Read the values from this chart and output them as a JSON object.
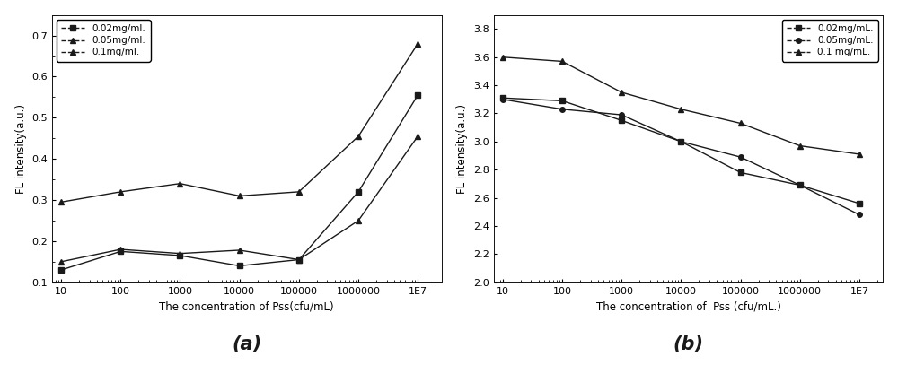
{
  "x_values": [
    10,
    100,
    1000,
    10000,
    100000,
    1000000,
    10000000
  ],
  "x_labels": [
    "10",
    "100",
    "1000",
    "10000",
    "100000",
    "1000000",
    "1E7"
  ],
  "panel_a": {
    "xlabel": "The concentration of Pss(cfu/mL)",
    "ylabel": "FL intensity(a.u.)",
    "ylim": [
      0.1,
      0.75
    ],
    "yticks": [
      0.1,
      0.2,
      0.3,
      0.4,
      0.5,
      0.6,
      0.7
    ],
    "series": [
      {
        "label": "0.02mg/ml.",
        "marker": "s",
        "y": [
          0.13,
          0.175,
          0.165,
          0.14,
          0.155,
          0.32,
          0.555
        ]
      },
      {
        "label": "0.05mg/ml.",
        "marker": "^",
        "y": [
          0.15,
          0.18,
          0.17,
          0.178,
          0.155,
          0.25,
          0.455
        ]
      },
      {
        "label": "0.1mg/ml.",
        "marker": "^",
        "y": [
          0.295,
          0.32,
          0.34,
          0.31,
          0.32,
          0.455,
          0.68
        ]
      }
    ]
  },
  "panel_b": {
    "xlabel": "The concentration of  Pss (cfu/mL.)",
    "ylabel": "FL intensity(a.u.)",
    "ylim": [
      2.0,
      3.9
    ],
    "yticks": [
      2.0,
      2.2,
      2.4,
      2.6,
      2.8,
      3.0,
      3.2,
      3.4,
      3.6,
      3.8
    ],
    "series": [
      {
        "label": "0.02mg/mL.",
        "marker": "s",
        "y": [
          3.31,
          3.29,
          3.15,
          3.0,
          2.78,
          2.69,
          2.56
        ]
      },
      {
        "label": "0.05mg/mL.",
        "marker": "o",
        "y": [
          3.3,
          3.23,
          3.19,
          3.0,
          2.89,
          2.69,
          2.48
        ]
      },
      {
        "label": "0.1 mg/mL.",
        "marker": "^",
        "y": [
          3.6,
          3.57,
          3.35,
          3.23,
          3.13,
          2.97,
          2.91
        ]
      }
    ]
  },
  "line_color": "#1a1a1a",
  "line_width": 1.0,
  "marker_size": 4,
  "font_size_label": 8.5,
  "font_size_tick": 8,
  "font_size_legend": 7.5,
  "font_size_panel_label": 15,
  "bg_color": "#ffffff"
}
